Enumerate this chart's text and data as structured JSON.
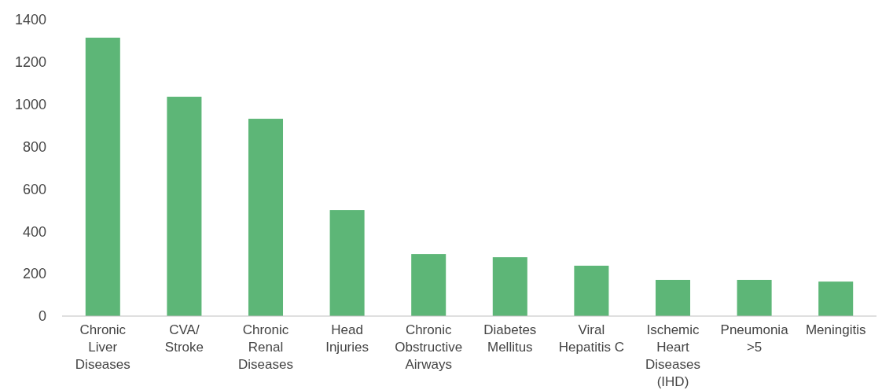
{
  "chart_data": {
    "type": "bar",
    "categories": [
      "Chronic Liver Diseases",
      "CVA/ Stroke",
      "Chronic Renal Diseases",
      "Head Injuries",
      "Chronic Obstructive Airways",
      "Diabetes Mellitus",
      "Viral Hepatitis C",
      "Ischemic Heart Diseases (IHD)",
      "Pneumonia >5",
      "Meningitis"
    ],
    "values": [
      1315,
      1036,
      932,
      501,
      293,
      278,
      238,
      171,
      171,
      163
    ],
    "color": "#5db677",
    "ylim": [
      0,
      1400
    ],
    "yticks": [
      0,
      200,
      400,
      600,
      800,
      1000,
      1200,
      1400
    ],
    "grid": false
  }
}
